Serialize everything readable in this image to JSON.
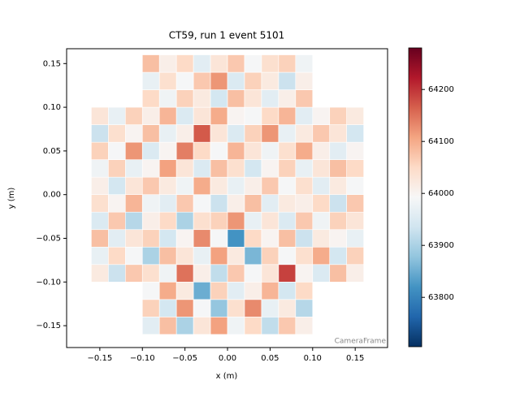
{
  "chart_data": {
    "type": "heatmap",
    "title": "CT59, run 1 event 5101",
    "x_label": "x  (m)",
    "y_label": "y  (m)",
    "annotation": "CameraFrame",
    "xlim": [
      -0.189,
      0.188
    ],
    "ylim": [
      -0.175,
      0.167
    ],
    "xticks": [
      {
        "value": -0.15,
        "label": "−0.15"
      },
      {
        "value": -0.1,
        "label": "−0.10"
      },
      {
        "value": -0.05,
        "label": "−0.05"
      },
      {
        "value": 0,
        "label": "0.00"
      },
      {
        "value": 0.05,
        "label": "0.05"
      },
      {
        "value": 0.1,
        "label": "0.10"
      },
      {
        "value": 0.15,
        "label": "0.15"
      }
    ],
    "yticks": [
      {
        "value": -0.15,
        "label": "−0.15"
      },
      {
        "value": -0.1,
        "label": "−0.10"
      },
      {
        "value": -0.05,
        "label": "−0.05"
      },
      {
        "value": 0,
        "label": "0.00"
      },
      {
        "value": 0.05,
        "label": "0.05"
      },
      {
        "value": 0.1,
        "label": "0.10"
      },
      {
        "value": 0.15,
        "label": "0.15"
      }
    ],
    "zlim": [
      63705,
      64280
    ],
    "zticks": [
      63800,
      63900,
      64000,
      64100,
      64200
    ],
    "colormap": "RdBu_r",
    "x_edges": [
      -0.16,
      -0.14,
      -0.12,
      -0.1,
      -0.08,
      -0.06,
      -0.04,
      -0.02,
      0,
      0.02,
      0.04,
      0.06,
      0.08,
      0.1,
      0.12,
      0.14,
      0.16
    ],
    "y_edges": [
      -0.16,
      -0.14,
      -0.12,
      -0.1,
      -0.08,
      -0.06,
      -0.04,
      -0.02,
      0,
      0.02,
      0.04,
      0.06,
      0.08,
      0.1,
      0.12,
      0.14,
      0.16
    ],
    "z": [
      [
        null,
        null,
        null,
        63960,
        64080,
        63900,
        64030,
        64110,
        63980,
        64050,
        63920,
        64070,
        64010,
        null,
        null,
        null
      ],
      [
        null,
        null,
        null,
        64060,
        63940,
        64120,
        63990,
        63880,
        64040,
        64130,
        63970,
        64020,
        63910,
        null,
        null,
        null
      ],
      [
        null,
        null,
        null,
        63990,
        64100,
        64020,
        63850,
        64060,
        63960,
        64010,
        64090,
        63940,
        64050,
        null,
        null,
        null
      ],
      [
        64020,
        63930,
        64070,
        64040,
        63980,
        64150,
        64010,
        63920,
        64070,
        63990,
        64030,
        64190,
        64000,
        63950,
        64080,
        64010
      ],
      [
        63970,
        64050,
        63990,
        63900,
        64080,
        64030,
        63970,
        64110,
        64020,
        63860,
        64060,
        63990,
        64040,
        64100,
        63940,
        64060
      ],
      [
        64080,
        63960,
        64030,
        64060,
        63940,
        64000,
        64130,
        63990,
        63820,
        64050,
        64000,
        64080,
        63930,
        64020,
        64000,
        63970
      ],
      [
        63950,
        64070,
        63910,
        64010,
        64050,
        63900,
        64040,
        64060,
        64120,
        63970,
        64030,
        63950,
        64070,
        63980,
        64060,
        64030
      ],
      [
        64040,
        64000,
        64090,
        63980,
        63960,
        64070,
        63990,
        63930,
        64010,
        64080,
        63960,
        64020,
        64010,
        64050,
        63930,
        64070
      ],
      [
        64010,
        63940,
        64030,
        64070,
        64020,
        63980,
        64100,
        64020,
        63970,
        64010,
        64070,
        63990,
        64040,
        63960,
        64020,
        63990
      ],
      [
        63980,
        64060,
        63970,
        64000,
        64110,
        64030,
        63950,
        64080,
        64040,
        63940,
        64000,
        64060,
        63970,
        64030,
        64080,
        64050
      ],
      [
        64060,
        63990,
        64120,
        63950,
        64000,
        64140,
        64050,
        63990,
        64090,
        64030,
        63980,
        64040,
        64100,
        64010,
        63960,
        64000
      ],
      [
        63930,
        64040,
        64000,
        64080,
        63970,
        64010,
        64170,
        64030,
        63950,
        64060,
        64120,
        63970,
        64020,
        64070,
        64030,
        63940
      ],
      [
        64030,
        63970,
        64060,
        64010,
        64090,
        63950,
        64030,
        64100,
        64000,
        63990,
        64050,
        64090,
        63960,
        64000,
        64060,
        64020
      ],
      [
        null,
        null,
        null,
        64050,
        63980,
        64060,
        64020,
        63940,
        64080,
        64030,
        63960,
        64010,
        64070,
        null,
        null,
        null
      ],
      [
        null,
        null,
        null,
        63970,
        64040,
        63990,
        64070,
        64120,
        63950,
        64060,
        64020,
        63930,
        64010,
        null,
        null,
        null
      ],
      [
        null,
        null,
        null,
        64080,
        64010,
        64050,
        63960,
        64030,
        64070,
        63990,
        64040,
        64060,
        63980,
        null,
        null,
        null
      ]
    ]
  }
}
